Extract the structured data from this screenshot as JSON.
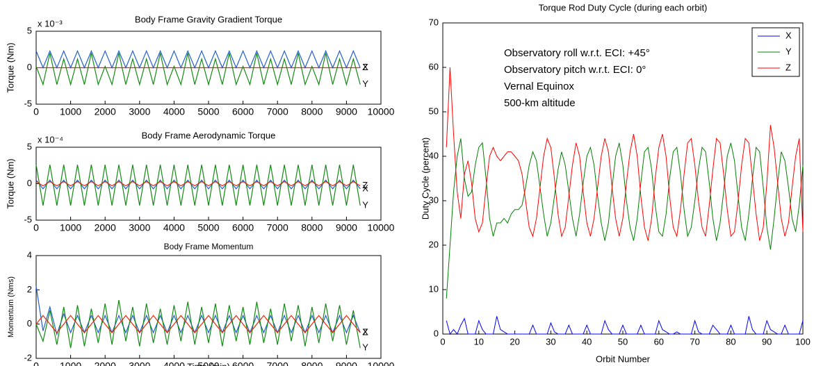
{
  "chart_data": [
    {
      "type": "line",
      "title": "Body Frame Gravity Gradient Torque",
      "ylabel": "Torque (Nm)",
      "multiplier": "x 10⁻³",
      "legend": "line-end",
      "x": [
        0,
        200,
        400,
        600,
        800,
        1000,
        1200,
        1400,
        1600,
        1800,
        2000,
        2200,
        2400,
        2600,
        2800,
        3000,
        3200,
        3400,
        3600,
        3800,
        4000,
        4200,
        4400,
        4600,
        4800,
        5000,
        5200,
        5400,
        5600,
        5800,
        6000,
        6200,
        6400,
        6600,
        6800,
        7000,
        7200,
        7400,
        7600,
        7800,
        8000,
        8200,
        8400,
        8600,
        8800,
        9000,
        9200,
        9400
      ],
      "xlim": [
        0,
        10000
      ],
      "xticks": [
        0,
        1000,
        2000,
        3000,
        4000,
        5000,
        6000,
        7000,
        8000,
        9000,
        10000
      ],
      "ylim": [
        -5,
        5
      ],
      "yticks": [
        -5,
        0,
        5
      ],
      "series": [
        {
          "name": "X",
          "color": "#1f5fd0",
          "values": [
            2.3,
            0,
            2.3,
            0,
            2.3,
            0,
            2.3,
            0,
            2.3,
            0,
            2.3,
            0,
            2.3,
            0,
            2.3,
            0,
            2.3,
            0,
            2.3,
            0,
            2.3,
            0,
            2.3,
            0,
            2.3,
            0,
            2.3,
            0,
            2.3,
            0,
            2.3,
            0,
            2.3,
            0,
            2.3,
            0,
            2.3,
            0,
            2.3,
            0,
            2.3,
            0,
            2.3,
            0,
            2.3,
            0,
            2.3,
            0
          ]
        },
        {
          "name": "Y",
          "color": "#118a11",
          "values": [
            0.2,
            -2.3,
            2.0,
            -2.3,
            1.2,
            -2.3,
            1.2,
            -2.3,
            2.0,
            -2.3,
            0.2,
            -2.3,
            2.0,
            -2.3,
            1.2,
            -2.3,
            1.2,
            -2.3,
            2.0,
            -2.3,
            0.2,
            -2.3,
            2.0,
            -2.3,
            1.2,
            -2.3,
            1.2,
            -2.3,
            2.0,
            -2.3,
            0.2,
            -2.3,
            2.0,
            -2.3,
            1.2,
            -2.3,
            1.2,
            -2.3,
            2.0,
            -2.3,
            0.2,
            -2.3,
            2.0,
            -2.3,
            1.2,
            -2.3,
            1.2,
            -2.3
          ]
        },
        {
          "name": "Z",
          "color": "#ee2200",
          "values": [
            0,
            0,
            0,
            0,
            0,
            0,
            0,
            0,
            0,
            0,
            0,
            0,
            0,
            0,
            0,
            0,
            0,
            0,
            0,
            0,
            0,
            0,
            0,
            0,
            0,
            0,
            0,
            0,
            0,
            0,
            0,
            0,
            0,
            0,
            0,
            0,
            0,
            0,
            0,
            0,
            0,
            0,
            0,
            0,
            0,
            0,
            0,
            0
          ]
        }
      ]
    },
    {
      "type": "line",
      "title": "Body Frame Aerodynamic Torque",
      "ylabel": "Torque (Nm)",
      "multiplier": "x 10⁻⁴",
      "legend": "line-end",
      "x": [
        0,
        200,
        400,
        600,
        800,
        1000,
        1200,
        1400,
        1600,
        1800,
        2000,
        2200,
        2400,
        2600,
        2800,
        3000,
        3200,
        3400,
        3600,
        3800,
        4000,
        4200,
        4400,
        4600,
        4800,
        5000,
        5200,
        5400,
        5600,
        5800,
        6000,
        6200,
        6400,
        6600,
        6800,
        7000,
        7200,
        7400,
        7600,
        7800,
        8000,
        8200,
        8400,
        8600,
        8800,
        9000,
        9200,
        9400
      ],
      "xlim": [
        0,
        10000
      ],
      "xticks": [
        0,
        1000,
        2000,
        3000,
        4000,
        5000,
        6000,
        7000,
        8000,
        9000,
        10000
      ],
      "ylim": [
        -5,
        5
      ],
      "yticks": [
        -5,
        0,
        5
      ],
      "series": [
        {
          "name": "X",
          "color": "#1f5fd0",
          "values": [
            0.5,
            -0.7,
            0.5,
            -0.7,
            0.5,
            -0.7,
            0.5,
            -0.7,
            0.5,
            -0.7,
            0.5,
            -0.7,
            0.5,
            -0.7,
            0.5,
            -0.7,
            0.5,
            -0.7,
            0.5,
            -0.7,
            0.5,
            -0.7,
            0.5,
            -0.7,
            0.5,
            -0.7,
            0.5,
            -0.7,
            0.5,
            -0.7,
            0.5,
            -0.7,
            0.5,
            -0.7,
            0.5,
            -0.7,
            0.5,
            -0.7,
            0.5,
            -0.7,
            0.5,
            -0.7,
            0.5,
            -0.7,
            0.5,
            -0.7,
            0.5,
            -0.7
          ]
        },
        {
          "name": "Y",
          "color": "#118a11",
          "values": [
            2.6,
            -3.0,
            2.6,
            -3.0,
            2.6,
            -3.0,
            2.6,
            -3.0,
            2.6,
            -3.0,
            2.6,
            -3.0,
            2.6,
            -3.0,
            2.6,
            -3.0,
            2.6,
            -3.0,
            2.6,
            -3.0,
            2.6,
            -3.0,
            2.6,
            -3.0,
            2.6,
            -3.0,
            2.6,
            -3.0,
            2.6,
            -3.0,
            2.6,
            -3.0,
            2.6,
            -3.0,
            2.6,
            -3.0,
            2.6,
            -3.0,
            2.6,
            -3.0,
            2.6,
            -3.0,
            2.6,
            -3.0,
            2.6,
            -3.0,
            2.6,
            -3.0
          ]
        },
        {
          "name": "Z",
          "color": "#ee2200",
          "values": [
            0.3,
            -0.3,
            0.3,
            -0.3,
            0.3,
            -0.3,
            0.3,
            -0.3,
            0.3,
            -0.3,
            0.3,
            -0.3,
            0.3,
            -0.3,
            0.3,
            -0.3,
            0.3,
            -0.3,
            0.3,
            -0.3,
            0.3,
            -0.3,
            0.3,
            -0.3,
            0.3,
            -0.3,
            0.3,
            -0.3,
            0.3,
            -0.3,
            0.3,
            -0.3,
            0.3,
            -0.3,
            0.3,
            -0.3,
            0.3,
            -0.3,
            0.3,
            -0.3,
            0.3,
            -0.3,
            0.3,
            -0.3,
            0.3,
            -0.3,
            0.3,
            -0.3
          ]
        }
      ]
    },
    {
      "type": "line",
      "title": "Body Frame Momentum",
      "ylabel": "Momentum (Nms)",
      "xlabel": "Time (min)",
      "legend": "line-end",
      "x": [
        0,
        200,
        400,
        600,
        800,
        1000,
        1200,
        1400,
        1600,
        1800,
        2000,
        2200,
        2400,
        2600,
        2800,
        3000,
        3200,
        3400,
        3600,
        3800,
        4000,
        4200,
        4400,
        4600,
        4800,
        5000,
        5200,
        5400,
        5600,
        5800,
        6000,
        6200,
        6400,
        6600,
        6800,
        7000,
        7200,
        7400,
        7600,
        7800,
        8000,
        8200,
        8400,
        8600,
        8800,
        9000,
        9200,
        9400
      ],
      "xlim": [
        0,
        10000
      ],
      "xticks": [
        0,
        1000,
        2000,
        3000,
        4000,
        5000,
        6000,
        7000,
        8000,
        9000,
        10000
      ],
      "ylim": [
        -2,
        4
      ],
      "yticks": [
        -2,
        0,
        2,
        4
      ],
      "series": [
        {
          "name": "X",
          "color": "#1f5fd0",
          "values": [
            2.2,
            -0.4,
            1.0,
            -0.6,
            0.6,
            -0.5,
            0.5,
            -0.5,
            0.5,
            -0.5,
            0.5,
            -0.5,
            0.5,
            -0.5,
            0.5,
            -0.5,
            0.5,
            -0.5,
            0.5,
            -0.5,
            0.5,
            -0.5,
            0.5,
            -0.5,
            0.5,
            -0.5,
            0.5,
            -0.5,
            0.5,
            -0.5,
            0.5,
            -0.5,
            0.5,
            -0.5,
            0.5,
            -0.5,
            0.5,
            -0.5,
            0.5,
            -0.5,
            0.5,
            -0.5,
            0.5,
            -0.5,
            0.5,
            -0.5,
            0.5,
            -0.5
          ]
        },
        {
          "name": "Y",
          "color": "#118a11",
          "values": [
            0,
            -1,
            0.8,
            -1.2,
            1,
            -1.4,
            1.1,
            -1.3,
            0.9,
            -1.1,
            1.2,
            -1.2,
            1.4,
            -1.0,
            1.0,
            -1.3,
            1.2,
            -1.1,
            0.9,
            -1.2,
            1.1,
            -1.0,
            1.3,
            -1.2,
            1.0,
            -1.1,
            1.2,
            -1.3,
            1.1,
            -1.0,
            1.0,
            -1.2,
            1.3,
            -1.1,
            0.9,
            -1.2,
            1.2,
            -1.0,
            1.1,
            -1.3,
            1.0,
            -1.1,
            1.2,
            -1.0,
            1.1,
            -1.2,
            0.8,
            -1.4
          ]
        },
        {
          "name": "Z",
          "color": "#ee2200",
          "values": [
            0,
            0.5,
            0,
            -0.5,
            0,
            0.5,
            0,
            -0.5,
            0,
            0.5,
            0,
            -0.5,
            0,
            0.5,
            0,
            -0.5,
            0,
            0.5,
            0,
            -0.5,
            0,
            0.5,
            0,
            -0.5,
            0,
            0.5,
            0,
            -0.5,
            0,
            0.5,
            0,
            -0.5,
            0,
            0.5,
            0,
            -0.5,
            0,
            0.5,
            0,
            -0.5,
            0,
            0.5,
            0,
            -0.5,
            0,
            0.5,
            0,
            -0.5
          ]
        }
      ]
    },
    {
      "type": "line",
      "title": "Torque Rod Duty Cycle (during each orbit)",
      "ylabel": "Duty Cycle (percent)",
      "xlabel": "Orbit Number",
      "legend": "upper right",
      "annotations": [
        "Observatory roll w.r.t. ECI: +45°",
        "Observatory pitch w.r.t. ECI: 0°",
        "Vernal Equinox",
        "500-km altitude"
      ],
      "x": [
        1,
        2,
        3,
        4,
        5,
        6,
        7,
        8,
        9,
        10,
        11,
        12,
        13,
        14,
        15,
        16,
        17,
        18,
        19,
        20,
        21,
        22,
        23,
        24,
        25,
        26,
        27,
        28,
        29,
        30,
        31,
        32,
        33,
        34,
        35,
        36,
        37,
        38,
        39,
        40,
        41,
        42,
        43,
        44,
        45,
        46,
        47,
        48,
        49,
        50,
        51,
        52,
        53,
        54,
        55,
        56,
        57,
        58,
        59,
        60,
        61,
        62,
        63,
        64,
        65,
        66,
        67,
        68,
        69,
        70,
        71,
        72,
        73,
        74,
        75,
        76,
        77,
        78,
        79,
        80,
        81,
        82,
        83,
        84,
        85,
        86,
        87,
        88,
        89,
        90,
        91,
        92,
        93,
        94,
        95,
        96,
        97,
        98,
        99,
        100
      ],
      "xlim": [
        0,
        100
      ],
      "xticks": [
        0,
        10,
        20,
        30,
        40,
        50,
        60,
        70,
        80,
        90,
        100
      ],
      "ylim": [
        0,
        70
      ],
      "yticks": [
        0,
        10,
        20,
        30,
        40,
        50,
        60,
        70
      ],
      "series": [
        {
          "name": "X",
          "color": "#0000ff",
          "values": [
            3,
            0,
            1,
            0,
            2,
            3.5,
            0,
            0,
            0,
            3,
            1,
            0,
            0,
            0,
            4,
            1,
            0.5,
            0,
            0,
            0,
            0,
            0,
            0,
            0,
            2,
            0,
            0,
            0,
            0,
            2.5,
            0.5,
            0,
            0,
            0,
            2,
            0,
            0,
            0,
            0,
            2,
            0,
            0,
            0,
            0,
            3,
            1,
            0,
            0,
            0,
            2,
            0,
            0,
            0,
            0,
            2,
            0,
            0,
            0,
            0,
            3,
            1,
            0.5,
            0,
            0,
            0.5,
            0,
            0,
            0,
            0,
            3,
            0.5,
            0,
            0,
            0,
            2,
            1,
            0,
            0,
            0,
            2,
            0,
            0,
            0,
            0,
            4,
            1,
            0,
            0,
            0,
            3,
            1,
            0.5,
            0,
            0,
            2,
            0,
            0,
            0,
            0,
            3
          ]
        },
        {
          "name": "Y",
          "color": "#008000",
          "values": [
            8,
            20,
            32,
            40,
            44,
            35,
            31,
            32,
            38,
            42,
            43,
            35,
            26,
            22,
            25,
            25,
            26,
            25,
            27,
            28,
            28,
            29,
            33,
            38,
            41,
            39,
            33,
            27,
            22,
            25,
            31,
            37,
            41,
            38,
            32,
            26,
            22,
            27,
            34,
            40,
            42,
            38,
            31,
            25,
            21,
            25,
            33,
            40,
            43,
            38,
            30,
            24,
            21,
            26,
            34,
            41,
            42,
            37,
            29,
            23,
            22,
            27,
            35,
            41,
            42,
            36,
            28,
            22,
            24,
            30,
            37,
            42,
            41,
            34,
            26,
            21,
            25,
            32,
            40,
            43,
            39,
            31,
            24,
            21,
            27,
            35,
            42,
            41,
            33,
            24,
            19,
            26,
            34,
            41,
            39,
            33,
            26,
            23,
            29,
            38
          ]
        },
        {
          "name": "Z",
          "color": "#ff0000",
          "values": [
            42,
            60,
            45,
            32,
            26,
            36,
            39,
            34,
            26,
            23,
            25,
            33,
            40,
            42,
            40,
            39,
            40,
            41,
            41,
            40,
            39,
            36,
            30,
            24,
            22,
            26,
            33,
            40,
            44,
            42,
            35,
            27,
            22,
            24,
            31,
            38,
            43,
            40,
            32,
            25,
            22,
            26,
            33,
            40,
            44,
            41,
            33,
            26,
            22,
            26,
            34,
            41,
            45,
            40,
            31,
            24,
            21,
            26,
            35,
            42,
            45,
            40,
            31,
            24,
            22,
            28,
            36,
            43,
            44,
            38,
            30,
            24,
            22,
            29,
            37,
            44,
            43,
            36,
            28,
            22,
            23,
            30,
            38,
            44,
            43,
            35,
            27,
            21,
            24,
            34,
            47,
            42,
            34,
            26,
            22,
            25,
            33,
            40,
            44,
            23
          ]
        }
      ]
    }
  ]
}
